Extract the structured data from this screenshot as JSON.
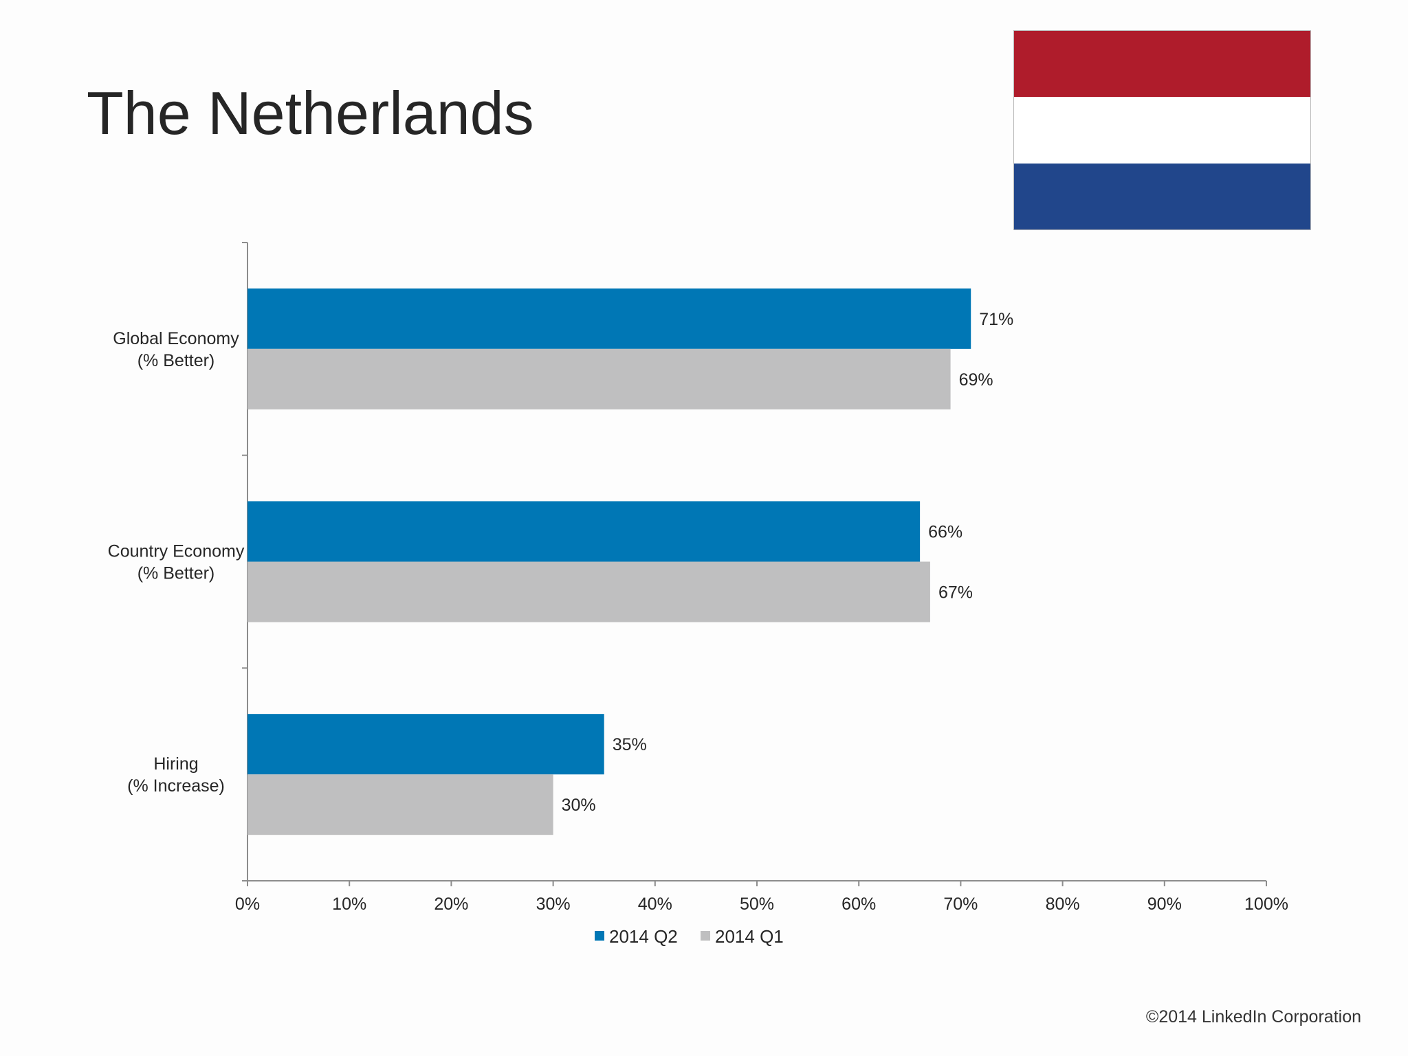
{
  "title": "The Netherlands",
  "copyright": "©2014 LinkedIn Corporation",
  "flag": {
    "name": "netherlands-flag",
    "colors": [
      "#af1c2b",
      "#ffffff",
      "#21468b"
    ]
  },
  "colors": {
    "q2": "#0077b5",
    "q1": "#bfbfc0",
    "axis": "#8c8c8c",
    "text": "#262626"
  },
  "chart_data": {
    "type": "bar",
    "orientation": "horizontal",
    "categories": [
      [
        "Global Economy",
        "(% Better)"
      ],
      [
        "Country Economy",
        "(% Better)"
      ],
      [
        "Hiring",
        "(% Increase)"
      ]
    ],
    "series": [
      {
        "name": "2014 Q2",
        "values": [
          71,
          66,
          35
        ],
        "labels": [
          "71%",
          "66%",
          "35%"
        ]
      },
      {
        "name": "2014 Q1",
        "values": [
          69,
          67,
          30
        ],
        "labels": [
          "69%",
          "67%",
          "30%"
        ]
      }
    ],
    "xlim": [
      0,
      100
    ],
    "xticks": [
      "0%",
      "10%",
      "20%",
      "30%",
      "40%",
      "50%",
      "60%",
      "70%",
      "80%",
      "90%",
      "100%"
    ],
    "grid": false,
    "legend": "bottom"
  }
}
